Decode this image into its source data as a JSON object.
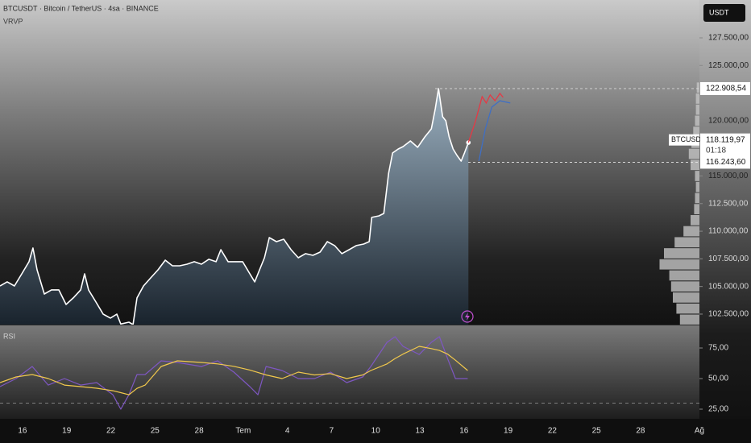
{
  "header": {
    "symbol": "BTCUSDT · Bitcoin / TetherUS · 4sa · BINANCE",
    "indicator": "VRVP"
  },
  "chart_data": [
    {
      "type": "line",
      "x": [
        -1.53,
        -1.04,
        -0.55,
        -0.05,
        0.44,
        0.71,
        0.99,
        1.48,
        1.97,
        2.47,
        2.96,
        3.45,
        3.95,
        4.22,
        4.49,
        4.99,
        5.48,
        5.97,
        6.41,
        6.68,
        7.23,
        7.51,
        7.78,
        8.22,
        8.71,
        9.21,
        9.7,
        10.19,
        10.68,
        11.18,
        11.67,
        12.16,
        12.66,
        13.15,
        13.48,
        13.97,
        14.47,
        14.96,
        15.45,
        15.78,
        16.11,
        16.44,
        16.77,
        17.26,
        17.75,
        18.25,
        18.74,
        19.23,
        19.73,
        20.22,
        20.71,
        21.21,
        21.7,
        22.19,
        22.68,
        23.18,
        23.56,
        23.73,
        24.22,
        24.55,
        24.88,
        25.15,
        25.53,
        25.86,
        26.36,
        26.85,
        27.34,
        27.78,
        28.05,
        28.27,
        28.55,
        28.77,
        28.99,
        29.26,
        29.53,
        29.81,
        30.03,
        30.3
      ],
      "series": [
        {
          "color": "#ffffff",
          "values": [
            105050,
            105420,
            105050,
            106140,
            107240,
            108480,
            106510,
            104320,
            104690,
            104690,
            103370,
            103960,
            104690,
            106140,
            104690,
            103590,
            102500,
            102140,
            102500,
            101600,
            101770,
            101550,
            103960,
            105050,
            105780,
            106510,
            107380,
            106870,
            106870,
            107020,
            107240,
            107020,
            107460,
            107240,
            108330,
            107240,
            107240,
            107240,
            106140,
            105420,
            106510,
            107600,
            109420,
            109060,
            109280,
            108330,
            107600,
            107970,
            107820,
            108110,
            109060,
            108700,
            107970,
            108330,
            108700,
            108840,
            109060,
            111250,
            111390,
            111610,
            115250,
            117080,
            117440,
            117660,
            118170,
            117590,
            118530,
            119260,
            121090,
            122900,
            120360,
            119990,
            118530,
            117440,
            116860,
            116350,
            117080,
            118020
          ]
        }
      ],
      "xlim": [
        -1.53,
        46
      ],
      "xticks": [
        {
          "value": 0,
          "label": "16"
        },
        {
          "value": 3,
          "label": "19"
        },
        {
          "value": 6,
          "label": "22"
        },
        {
          "value": 9,
          "label": "25"
        },
        {
          "value": 12,
          "label": "28"
        },
        {
          "value": 15,
          "label": "Tem"
        },
        {
          "value": 18,
          "label": "4"
        },
        {
          "value": 21,
          "label": "7"
        },
        {
          "value": 24,
          "label": "10"
        },
        {
          "value": 27,
          "label": "13"
        },
        {
          "value": 30,
          "label": "16"
        },
        {
          "value": 33,
          "label": "19"
        },
        {
          "value": 36,
          "label": "22"
        },
        {
          "value": 39,
          "label": "25"
        },
        {
          "value": 42,
          "label": "28"
        },
        {
          "value": 46,
          "label": "Ağ"
        }
      ],
      "ylim": [
        101550,
        130925
      ],
      "yticks": [
        {
          "value": 102500,
          "label": "102.500,00"
        },
        {
          "value": 105000,
          "label": "105.000,00"
        },
        {
          "value": 107500,
          "label": "107.500,00"
        },
        {
          "value": 110000,
          "label": "110.000,00"
        },
        {
          "value": 112500,
          "label": "112.500,00"
        },
        {
          "value": 115000,
          "label": "115.000,00"
        },
        {
          "value": 120000,
          "label": "120.000,00"
        },
        {
          "value": 125000,
          "label": "125.000,00"
        },
        {
          "value": 127500,
          "label": "127.500,00"
        }
      ],
      "currency": "USDT",
      "annotations": [
        {
          "value": 122908.54,
          "label": "122.908,54"
        },
        {
          "value": 116243.6,
          "label": "116.243,60"
        }
      ],
      "last_price": {
        "symbol": "BTCUSDT",
        "value": 118119.97,
        "label": "118.119,97",
        "countdown": "01:18"
      },
      "projections": [
        {
          "color": "#e53945",
          "x": [
            30.3,
            30.79,
            31.23,
            31.51,
            31.78,
            32.11,
            32.44,
            32.66
          ],
          "values": [
            118020,
            120000,
            122180,
            121600,
            122330,
            121810,
            122470,
            122110
          ]
        },
        {
          "color": "#3f6fc4",
          "x": [
            31.01,
            31.45,
            31.89,
            32.44,
            33.15
          ],
          "values": [
            116350,
            119260,
            121230,
            121810,
            121600
          ]
        }
      ],
      "volume_profile": {
        "bins": [
          101500,
          102500,
          103500,
          104500,
          105500,
          106500,
          107500,
          108500,
          109500,
          110500,
          111500,
          112500,
          113500,
          114500,
          115500,
          116500,
          117500,
          118500,
          119500,
          120500,
          121500,
          122500,
          123500
        ],
        "values": [
          22,
          26,
          30,
          32,
          34,
          45,
          40,
          28,
          18,
          10,
          6,
          5,
          4,
          5,
          10,
          12,
          9,
          7,
          5,
          4,
          4,
          3
        ],
        "xlim": [
          0,
          50
        ],
        "color": "#c4c4c4"
      }
    },
    {
      "type": "line",
      "title": "RSI",
      "x": [
        -1.53,
        -0.44,
        0.66,
        1.75,
        2.85,
        3.95,
        5.04,
        6.14,
        6.68,
        7.23,
        7.78,
        8.33,
        9.42,
        10.52,
        12.16,
        13.26,
        14.36,
        15.45,
        16.0,
        16.55,
        17.64,
        18.74,
        19.84,
        20.93,
        22.03,
        23.12,
        23.67,
        24.77,
        25.32,
        25.86,
        26.96,
        27.78,
        28.33,
        28.88,
        29.42,
        30.25
      ],
      "series": [
        {
          "color": "#7e57c2",
          "values": [
            43.4,
            50,
            59.9,
            44.7,
            50,
            44.7,
            46.7,
            36.8,
            25,
            36.8,
            53.3,
            53.3,
            64.5,
            63.2,
            59.9,
            64.5,
            55.3,
            43.4,
            36.8,
            59.9,
            56.6,
            50,
            50,
            55.3,
            46.7,
            51.3,
            59.9,
            79.6,
            84.2,
            76.3,
            69.7,
            79.6,
            84.2,
            66.4,
            50,
            50
          ]
        },
        {
          "color": "#f2c94c",
          "values": [
            46.7,
            51.3,
            53.3,
            50,
            44.7,
            43.4,
            42.1,
            40.1,
            38.5,
            36.8,
            42,
            44.7,
            59.9,
            64.5,
            63.2,
            62,
            60,
            57,
            55,
            53,
            50,
            55.3,
            53,
            54,
            50,
            53,
            56.6,
            62,
            66.4,
            70,
            76.3,
            74.5,
            73,
            70,
            65,
            56.6
          ]
        }
      ],
      "xlim": [
        -1.53,
        46
      ],
      "ylim": [
        17.1,
        94.1
      ],
      "yticks": [
        {
          "value": 25,
          "label": "25,00"
        },
        {
          "value": 50,
          "label": "50,00"
        },
        {
          "value": 75,
          "label": "75,00"
        }
      ],
      "levels": [
        30
      ]
    }
  ]
}
